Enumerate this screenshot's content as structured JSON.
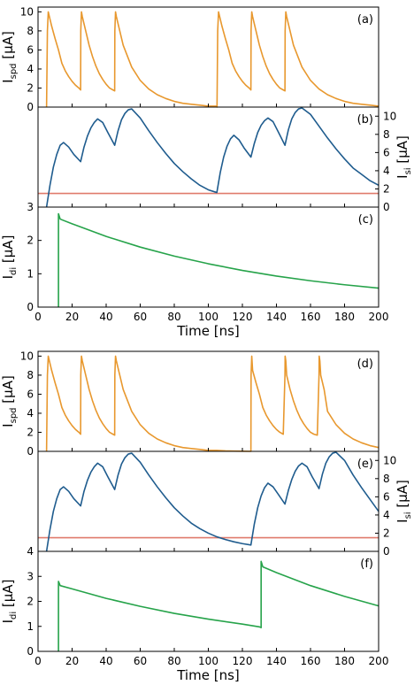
{
  "colors": {
    "spd": "#e8982e",
    "si": "#1f5c8e",
    "threshold": "#e07b6c",
    "di": "#26a34a",
    "axis": "#000000"
  },
  "chart_data": [
    {
      "type": "line",
      "panel": "(a)",
      "ylabel_main": "I",
      "ylabel_sub": "spd",
      "ylabel_unit": " [μA]",
      "y_side": "left",
      "xlim": [
        0,
        200
      ],
      "ylim": [
        0,
        10.5
      ],
      "yticks": [
        0,
        2,
        4,
        6,
        8,
        10
      ],
      "series": [
        {
          "color_key": "spd",
          "x": [
            5,
            5.5,
            6,
            8,
            10,
            12,
            14,
            16,
            18,
            20,
            22,
            24,
            25,
            25.1,
            25.5,
            26,
            28,
            30,
            32,
            34,
            36,
            38,
            40,
            42,
            44,
            45,
            45.1,
            45.5,
            46,
            48,
            50,
            55,
            60,
            65,
            70,
            75,
            80,
            85,
            90,
            95,
            100,
            105,
            105.1,
            105.5,
            106,
            108,
            110,
            112,
            114,
            116,
            118,
            120,
            122,
            124,
            125,
            125.1,
            125.5,
            126,
            128,
            130,
            132,
            134,
            136,
            138,
            140,
            142,
            144,
            145,
            145.1,
            145.5,
            146,
            148,
            150,
            155,
            160,
            165,
            170,
            175,
            180,
            185,
            190,
            195,
            200
          ],
          "y": [
            0,
            8,
            10,
            8.5,
            7.2,
            6.0,
            4.6,
            3.8,
            3.2,
            2.7,
            2.3,
            2.0,
            1.8,
            8,
            10,
            9.5,
            8.0,
            6.5,
            5.3,
            4.3,
            3.5,
            2.9,
            2.4,
            2.0,
            1.8,
            1.7,
            8,
            10,
            9.5,
            8.0,
            6.5,
            4.2,
            2.8,
            1.9,
            1.3,
            0.9,
            0.6,
            0.4,
            0.3,
            0.2,
            0.1,
            0.1,
            0,
            8,
            10,
            8.5,
            7.2,
            6.0,
            4.6,
            3.8,
            3.2,
            2.7,
            2.3,
            2.0,
            1.8,
            8,
            10,
            9.5,
            8.0,
            6.5,
            5.3,
            4.3,
            3.5,
            2.9,
            2.4,
            2.0,
            1.8,
            1.7,
            8,
            10,
            9.5,
            8.0,
            6.5,
            4.2,
            2.8,
            1.9,
            1.3,
            0.9,
            0.6,
            0.4,
            0.3,
            0.2,
            0.1
          ]
        }
      ]
    },
    {
      "type": "line",
      "panel": "(b)",
      "ylabel_main": "I",
      "ylabel_sub": "si",
      "ylabel_unit": " [μA]",
      "y_side": "right",
      "xlim": [
        0,
        200
      ],
      "ylim": [
        0,
        11
      ],
      "yticks": [
        0,
        2,
        4,
        6,
        8,
        10
      ],
      "series": [
        {
          "color_key": "threshold",
          "x": [
            0,
            200
          ],
          "y": [
            1.5,
            1.5
          ]
        },
        {
          "color_key": "si",
          "x": [
            5,
            7,
            9,
            11,
            13,
            15,
            18,
            21,
            25,
            27,
            29,
            31,
            33,
            35,
            38,
            41,
            45,
            47,
            49,
            51,
            53,
            55,
            60,
            65,
            70,
            75,
            80,
            85,
            90,
            95,
            100,
            105,
            107,
            109,
            111,
            113,
            115,
            118,
            121,
            125,
            127,
            129,
            131,
            133,
            135,
            138,
            141,
            145,
            147,
            149,
            151,
            153,
            155,
            160,
            165,
            170,
            175,
            180,
            185,
            190,
            195,
            200
          ],
          "y": [
            0,
            2.4,
            4.4,
            5.8,
            6.8,
            7.1,
            6.6,
            5.8,
            5.0,
            6.6,
            7.8,
            8.7,
            9.3,
            9.7,
            9.3,
            8.2,
            6.8,
            8.4,
            9.6,
            10.3,
            10.7,
            10.8,
            9.8,
            8.4,
            7.1,
            5.9,
            4.8,
            3.9,
            3.1,
            2.4,
            1.9,
            1.6,
            3.8,
            5.5,
            6.7,
            7.5,
            7.9,
            7.4,
            6.5,
            5.5,
            7.0,
            8.2,
            9.0,
            9.5,
            9.8,
            9.4,
            8.3,
            6.8,
            8.5,
            9.7,
            10.4,
            10.8,
            10.9,
            10.2,
            8.9,
            7.6,
            6.4,
            5.3,
            4.3,
            3.6,
            2.9,
            2.4
          ]
        }
      ]
    },
    {
      "type": "line",
      "panel": "(c)",
      "ylabel_main": "I",
      "ylabel_sub": "di",
      "ylabel_unit": " [μA]",
      "y_side": "left",
      "xlim": [
        0,
        200
      ],
      "ylim": [
        0,
        3
      ],
      "yticks": [
        0,
        1,
        2,
        3
      ],
      "xticks": [
        0,
        20,
        40,
        60,
        80,
        100,
        120,
        140,
        160,
        180,
        200
      ],
      "xlabel": "Time [ns]",
      "series": [
        {
          "color_key": "di",
          "x": [
            12,
            12,
            13,
            20,
            40,
            60,
            80,
            100,
            120,
            140,
            160,
            180,
            200
          ],
          "y": [
            0,
            2.8,
            2.64,
            2.5,
            2.12,
            1.8,
            1.53,
            1.3,
            1.1,
            0.93,
            0.79,
            0.67,
            0.57
          ]
        }
      ]
    },
    {
      "type": "line",
      "panel": "(d)",
      "ylabel_main": "I",
      "ylabel_sub": "spd",
      "ylabel_unit": " [μA]",
      "y_side": "left",
      "xlim": [
        0,
        200
      ],
      "ylim": [
        0,
        10.5
      ],
      "yticks": [
        0,
        2,
        4,
        6,
        8,
        10
      ],
      "series": [
        {
          "color_key": "spd",
          "x": [
            5,
            5.5,
            6,
            8,
            10,
            12,
            14,
            16,
            18,
            20,
            22,
            24,
            25,
            25.1,
            25.5,
            26,
            28,
            30,
            32,
            34,
            36,
            38,
            40,
            42,
            44,
            45,
            45.1,
            45.5,
            46,
            48,
            50,
            55,
            60,
            65,
            70,
            75,
            80,
            85,
            90,
            95,
            100,
            105,
            110,
            115,
            120,
            125,
            125.1,
            125.5,
            126,
            128,
            130,
            132,
            134,
            136,
            138,
            140,
            142,
            144,
            145,
            145.1,
            145.5,
            146,
            148,
            150,
            152,
            154,
            156,
            158,
            160,
            162,
            164,
            165,
            165.1,
            165.5,
            166,
            168,
            170,
            175,
            180,
            185,
            190,
            195,
            200
          ],
          "y": [
            0,
            8,
            10,
            8.5,
            7.2,
            6.0,
            4.6,
            3.8,
            3.2,
            2.7,
            2.3,
            2.0,
            1.8,
            8,
            10,
            9.5,
            8.0,
            6.5,
            5.3,
            4.3,
            3.5,
            2.9,
            2.4,
            2.0,
            1.8,
            1.7,
            8,
            10,
            9.5,
            8.0,
            6.5,
            4.2,
            2.8,
            1.9,
            1.3,
            0.9,
            0.6,
            0.4,
            0.3,
            0.2,
            0.1,
            0.1,
            0.05,
            0.03,
            0.02,
            0,
            8,
            10,
            8.5,
            7.2,
            6.0,
            4.6,
            3.8,
            3.2,
            2.7,
            2.3,
            2.0,
            1.8,
            8,
            10,
            9.5,
            8.0,
            6.5,
            5.3,
            4.3,
            3.5,
            2.9,
            2.4,
            2.0,
            1.8,
            1.7,
            8,
            10,
            9.5,
            8.0,
            6.5,
            4.2,
            2.8,
            1.9,
            1.3,
            0.9,
            0.6,
            0.4
          ]
        }
      ]
    },
    {
      "type": "line",
      "panel": "(e)",
      "ylabel_main": "I",
      "ylabel_sub": "si",
      "ylabel_unit": " [μA]",
      "y_side": "right",
      "xlim": [
        0,
        200
      ],
      "ylim": [
        0,
        11
      ],
      "yticks": [
        0,
        2,
        4,
        6,
        8,
        10
      ],
      "series": [
        {
          "color_key": "threshold",
          "x": [
            0,
            200
          ],
          "y": [
            1.5,
            1.5
          ]
        },
        {
          "color_key": "si",
          "x": [
            5,
            7,
            9,
            11,
            13,
            15,
            18,
            21,
            25,
            27,
            29,
            31,
            33,
            35,
            38,
            41,
            45,
            47,
            49,
            51,
            53,
            55,
            60,
            65,
            70,
            75,
            80,
            85,
            90,
            95,
            100,
            105,
            110,
            115,
            120,
            125,
            127,
            129,
            131,
            133,
            135,
            138,
            141,
            145,
            147,
            149,
            151,
            153,
            155,
            158,
            161,
            165,
            167,
            169,
            171,
            173,
            175,
            180,
            185,
            190,
            195,
            200
          ],
          "y": [
            0,
            2.4,
            4.4,
            5.8,
            6.8,
            7.1,
            6.6,
            5.8,
            5.0,
            6.6,
            7.8,
            8.7,
            9.3,
            9.7,
            9.3,
            8.2,
            6.8,
            8.4,
            9.6,
            10.3,
            10.7,
            10.8,
            9.8,
            8.4,
            7.1,
            5.9,
            4.8,
            3.9,
            3.1,
            2.5,
            2.0,
            1.6,
            1.3,
            1.05,
            0.85,
            0.7,
            3.0,
            4.8,
            6.1,
            7.0,
            7.5,
            7.1,
            6.3,
            5.2,
            6.7,
            7.9,
            8.8,
            9.4,
            9.7,
            9.3,
            8.2,
            6.9,
            8.5,
            9.7,
            10.4,
            10.8,
            10.9,
            10.0,
            8.4,
            7.0,
            5.7,
            4.4
          ]
        }
      ]
    },
    {
      "type": "line",
      "panel": "(f)",
      "ylabel_main": "I",
      "ylabel_sub": "di",
      "ylabel_unit": " [μA]",
      "y_side": "left",
      "xlim": [
        0,
        200
      ],
      "ylim": [
        0,
        4
      ],
      "yticks": [
        0,
        1,
        2,
        3,
        4
      ],
      "xticks": [
        0,
        20,
        40,
        60,
        80,
        100,
        120,
        140,
        160,
        180,
        200
      ],
      "xlabel": "Time [ns]",
      "series": [
        {
          "color_key": "di",
          "x": [
            12,
            12,
            13,
            20,
            40,
            60,
            80,
            100,
            120,
            130,
            131,
            131,
            132,
            140,
            160,
            180,
            200
          ],
          "y": [
            0,
            2.8,
            2.63,
            2.5,
            2.12,
            1.8,
            1.52,
            1.29,
            1.09,
            0.98,
            0.95,
            3.6,
            3.38,
            3.15,
            2.63,
            2.2,
            1.82
          ]
        }
      ]
    }
  ]
}
